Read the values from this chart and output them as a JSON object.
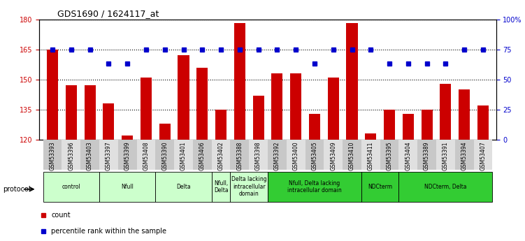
{
  "title": "GDS1690 / 1624117_at",
  "samples": [
    "GSM53393",
    "GSM53396",
    "GSM53403",
    "GSM53397",
    "GSM53399",
    "GSM53408",
    "GSM53390",
    "GSM53401",
    "GSM53406",
    "GSM53402",
    "GSM53388",
    "GSM53398",
    "GSM53392",
    "GSM53400",
    "GSM53405",
    "GSM53409",
    "GSM53410",
    "GSM53411",
    "GSM53395",
    "GSM53404",
    "GSM53389",
    "GSM53391",
    "GSM53394",
    "GSM53407"
  ],
  "bar_values": [
    165,
    147,
    147,
    138,
    122,
    151,
    128,
    162,
    156,
    135,
    178,
    142,
    153,
    153,
    133,
    151,
    178,
    123,
    135,
    133,
    135,
    148,
    145,
    137
  ],
  "percentile_values": [
    75,
    75,
    75,
    63,
    63,
    75,
    75,
    75,
    75,
    75,
    75,
    75,
    75,
    75,
    63,
    75,
    75,
    75,
    63,
    63,
    63,
    63,
    75,
    75
  ],
  "bar_color": "#cc0000",
  "percentile_color": "#0000cc",
  "ylim_left": [
    120,
    180
  ],
  "ylim_right": [
    0,
    100
  ],
  "yticks_left": [
    120,
    135,
    150,
    165,
    180
  ],
  "yticks_right": [
    0,
    25,
    50,
    75,
    100
  ],
  "ytick_labels_right": [
    "0",
    "25",
    "50",
    "75",
    "100%"
  ],
  "protocol_groups": [
    {
      "label": "control",
      "start": 0,
      "end": 3,
      "color": "#ccffcc"
    },
    {
      "label": "Nfull",
      "start": 3,
      "end": 6,
      "color": "#ccffcc"
    },
    {
      "label": "Delta",
      "start": 6,
      "end": 9,
      "color": "#ccffcc"
    },
    {
      "label": "Nfull,\nDelta",
      "start": 9,
      "end": 10,
      "color": "#ccffcc"
    },
    {
      "label": "Delta lacking\nintracellular\ndomain",
      "start": 10,
      "end": 12,
      "color": "#ccffcc"
    },
    {
      "label": "Nfull, Delta lacking\nintracellular domain",
      "start": 12,
      "end": 17,
      "color": "#33cc33"
    },
    {
      "label": "NDCterm",
      "start": 17,
      "end": 19,
      "color": "#33cc33"
    },
    {
      "label": "NDCterm, Delta",
      "start": 19,
      "end": 24,
      "color": "#33cc33"
    }
  ],
  "legend_count_label": "count",
  "legend_percentile_label": "percentile rank within the sample",
  "bar_width": 0.6,
  "tick_color_left": "#cc0000",
  "tick_color_right": "#0000cc"
}
